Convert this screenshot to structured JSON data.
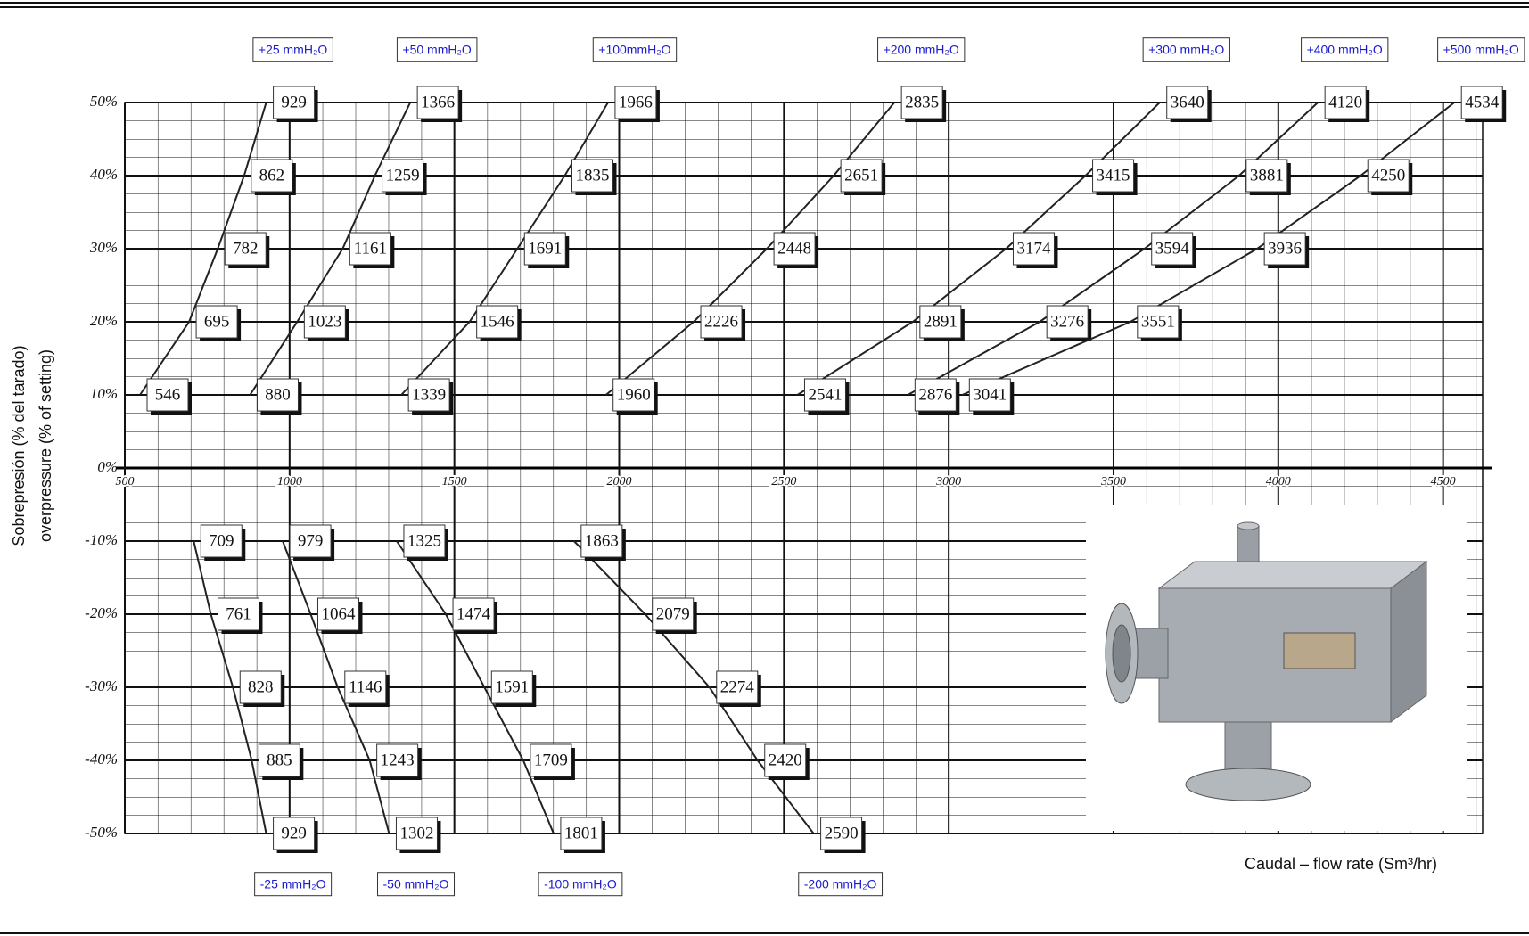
{
  "chart_data": {
    "type": "line",
    "y_labels": [
      "Sobrepresión (% del tarado)",
      "overpressure (% of setting)"
    ],
    "x_label": "Caudal – flow rate (Sm³/hr)",
    "xlim": [
      500,
      4620
    ],
    "ylim": [
      -50,
      50
    ],
    "xticks": [
      500,
      1000,
      1500,
      2000,
      2500,
      3000,
      3500,
      4000,
      4500
    ],
    "yticks": [
      {
        "value": -50,
        "label": "-50%"
      },
      {
        "value": -40,
        "label": "-40%"
      },
      {
        "value": -30,
        "label": "-30%"
      },
      {
        "value": -20,
        "label": "-20%"
      },
      {
        "value": -10,
        "label": "-10%"
      },
      {
        "value": 0,
        "label": "0%"
      },
      {
        "value": 10,
        "label": "10%"
      },
      {
        "value": 20,
        "label": "20%"
      },
      {
        "value": 30,
        "label": "30%"
      },
      {
        "value": 40,
        "label": "40%"
      },
      {
        "value": 50,
        "label": "50%"
      }
    ],
    "grid": true,
    "series": [
      {
        "name": "+25 mmH₂O",
        "color": "#222222",
        "x": [
          546,
          695,
          782,
          862,
          929
        ],
        "values": [
          10,
          20,
          30,
          40,
          50
        ]
      },
      {
        "name": "+50 mmH₂O",
        "color": "#222222",
        "x": [
          880,
          1023,
          1161,
          1259,
          1366
        ],
        "values": [
          10,
          20,
          30,
          40,
          50
        ]
      },
      {
        "name": "+100mmH₂O",
        "color": "#222222",
        "x": [
          1339,
          1546,
          1691,
          1835,
          1966
        ],
        "values": [
          10,
          20,
          30,
          40,
          50
        ]
      },
      {
        "name": "+200 mmH₂O",
        "color": "#222222",
        "x": [
          1960,
          2226,
          2448,
          2651,
          2835
        ],
        "values": [
          10,
          20,
          30,
          40,
          50
        ]
      },
      {
        "name": "+300 mmH₂O",
        "color": "#222222",
        "x": [
          2541,
          2891,
          3174,
          3415,
          3640
        ],
        "values": [
          10,
          20,
          30,
          40,
          50
        ]
      },
      {
        "name": "+400 mmH₂O",
        "color": "#222222",
        "x": [
          2876,
          3276,
          3594,
          3881,
          4120
        ],
        "values": [
          10,
          20,
          30,
          40,
          50
        ]
      },
      {
        "name": "+500 mmH₂O",
        "color": "#222222",
        "x": [
          3041,
          3551,
          3936,
          4250,
          4534
        ],
        "values": [
          10,
          20,
          30,
          40,
          50
        ]
      },
      {
        "name": "-25 mmH₂O",
        "color": "#222222",
        "x": [
          709,
          761,
          828,
          885,
          929
        ],
        "values": [
          -10,
          -20,
          -30,
          -40,
          -50
        ]
      },
      {
        "name": "-50 mmH₂O",
        "color": "#222222",
        "x": [
          979,
          1064,
          1146,
          1243,
          1302
        ],
        "values": [
          -10,
          -20,
          -30,
          -40,
          -50
        ]
      },
      {
        "name": "-100 mmH₂O",
        "color": "#222222",
        "x": [
          1325,
          1474,
          1591,
          1709,
          1801
        ],
        "values": [
          -10,
          -20,
          -30,
          -40,
          -50
        ]
      },
      {
        "name": "-200 mmH₂O",
        "color": "#222222",
        "x": [
          1863,
          2079,
          2274,
          2420,
          2590
        ],
        "values": [
          -10,
          -20,
          -30,
          -40,
          -50
        ]
      }
    ]
  }
}
